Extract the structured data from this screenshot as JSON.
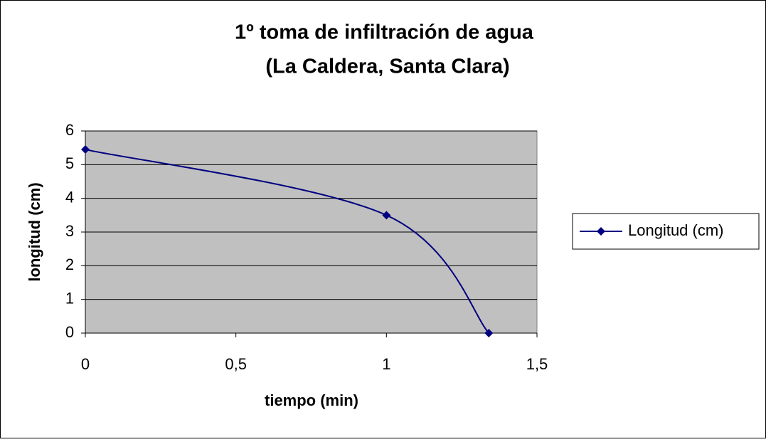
{
  "chart_data": {
    "type": "line",
    "title": [
      "1º toma de infiltración de agua",
      "(La Caldera, Santa Clara)"
    ],
    "x_label": "tiempo (min)",
    "y_label": "longitud (cm)",
    "x": [
      0,
      1,
      1.34
    ],
    "series": [
      {
        "name": "Longitud (cm)",
        "color": "#000080",
        "values": [
          5.45,
          3.5,
          0
        ]
      }
    ],
    "xlim": [
      0,
      1.5
    ],
    "xticks": [
      0,
      {
        "value": 0.5,
        "label": "0,5"
      },
      1,
      {
        "value": 1.5,
        "label": "1,5"
      }
    ],
    "ylim": [
      0,
      6
    ],
    "yticks": [
      0,
      1,
      2,
      3,
      4,
      5,
      6
    ],
    "grid": true,
    "smooth": true,
    "legend": "right"
  }
}
